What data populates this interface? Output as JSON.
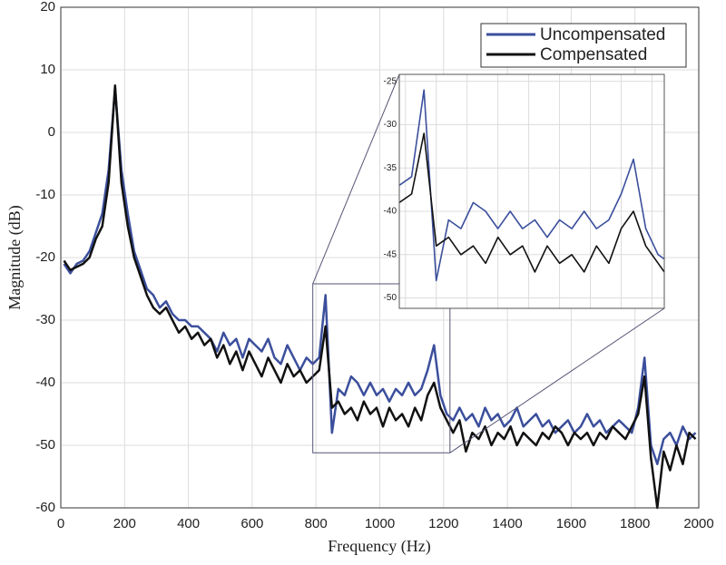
{
  "chart_data": {
    "type": "line",
    "x_label": "Frequency (Hz)",
    "y_label": "Magnitude (dB)",
    "xlim": [
      0,
      2000
    ],
    "xticks": [
      0,
      200,
      400,
      600,
      800,
      1000,
      1200,
      1400,
      1600,
      1800,
      2000
    ],
    "ylim": [
      -60,
      20
    ],
    "yticks": [
      -60,
      -50,
      -40,
      -30,
      -20,
      -10,
      0,
      10,
      20
    ],
    "grid": true,
    "legend": "upper right",
    "x": [
      10,
      30,
      50,
      70,
      90,
      110,
      130,
      150,
      170,
      190,
      210,
      230,
      250,
      270,
      290,
      310,
      330,
      350,
      370,
      390,
      410,
      430,
      450,
      470,
      490,
      510,
      530,
      550,
      570,
      590,
      610,
      630,
      650,
      670,
      690,
      710,
      730,
      750,
      770,
      790,
      810,
      830,
      850,
      870,
      890,
      910,
      930,
      950,
      970,
      990,
      1010,
      1030,
      1050,
      1070,
      1090,
      1110,
      1130,
      1150,
      1170,
      1190,
      1210,
      1230,
      1250,
      1270,
      1290,
      1310,
      1330,
      1350,
      1370,
      1390,
      1410,
      1430,
      1450,
      1470,
      1490,
      1510,
      1530,
      1550,
      1570,
      1590,
      1610,
      1630,
      1650,
      1670,
      1690,
      1710,
      1730,
      1750,
      1770,
      1790,
      1810,
      1830,
      1850,
      1870,
      1890,
      1910,
      1930,
      1950,
      1970,
      1990
    ],
    "series": [
      {
        "name": "Uncompensated",
        "color": "#3b4f9c",
        "values": [
          -21,
          -22.5,
          -21,
          -20.5,
          -19,
          -16,
          -13,
          -6,
          7,
          -6,
          -13,
          -19,
          -22,
          -25,
          -26,
          -28,
          -27,
          -29,
          -30,
          -30,
          -31,
          -31,
          -32,
          -33,
          -35,
          -32,
          -34,
          -33,
          -36,
          -33,
          -34,
          -35,
          -33,
          -36,
          -37,
          -34,
          -36,
          -38,
          -36,
          -37,
          -36,
          -26,
          -48,
          -41,
          -42,
          -39,
          -40,
          -42,
          -40,
          -42,
          -41,
          -43,
          -41,
          -42,
          -40,
          -42,
          -41,
          -38,
          -34,
          -42,
          -45,
          -46,
          -44,
          -46,
          -45,
          -47,
          -44,
          -46,
          -45,
          -47,
          -46,
          -44,
          -47,
          -46,
          -45,
          -47,
          -46,
          -48,
          -47,
          -46,
          -48,
          -47,
          -45,
          -47,
          -46,
          -48,
          -47,
          -46,
          -47,
          -48,
          -44,
          -36,
          -50,
          -53,
          -49,
          -48,
          -50,
          -47,
          -49,
          -48
        ]
      },
      {
        "name": "Compensated",
        "color": "#111111",
        "values": [
          -20.5,
          -22,
          -21.5,
          -21,
          -20,
          -17,
          -15,
          -8,
          7.5,
          -8,
          -15,
          -20,
          -23,
          -26,
          -28,
          -29,
          -28,
          -30,
          -32,
          -31,
          -33,
          -32,
          -34,
          -33,
          -36,
          -34,
          -37,
          -35,
          -38,
          -35,
          -37,
          -39,
          -36,
          -38,
          -40,
          -37,
          -39,
          -38,
          -40,
          -39,
          -38,
          -31,
          -44,
          -43,
          -45,
          -44,
          -46,
          -43,
          -45,
          -44,
          -47,
          -44,
          -46,
          -45,
          -47,
          -44,
          -46,
          -42,
          -40,
          -44,
          -46,
          -48,
          -46,
          -51,
          -48,
          -49,
          -47,
          -50,
          -48,
          -49,
          -47,
          -50,
          -48,
          -49,
          -50,
          -48,
          -49,
          -47,
          -48,
          -50,
          -48,
          -49,
          -48,
          -50,
          -48,
          -49,
          -47,
          -48,
          -49,
          -47,
          -45,
          -39,
          -52,
          -60,
          -51,
          -54,
          -50,
          -53,
          -48,
          -49
        ]
      }
    ],
    "inset": {
      "xlim": [
        790,
        1220
      ],
      "ylim": [
        -51.2,
        -24.2
      ],
      "xticks": [
        800,
        850,
        900,
        950,
        1000,
        1050,
        1100,
        1150,
        1200
      ],
      "yticks": [
        -25,
        -30,
        -35,
        -40,
        -45,
        -50
      ]
    }
  }
}
